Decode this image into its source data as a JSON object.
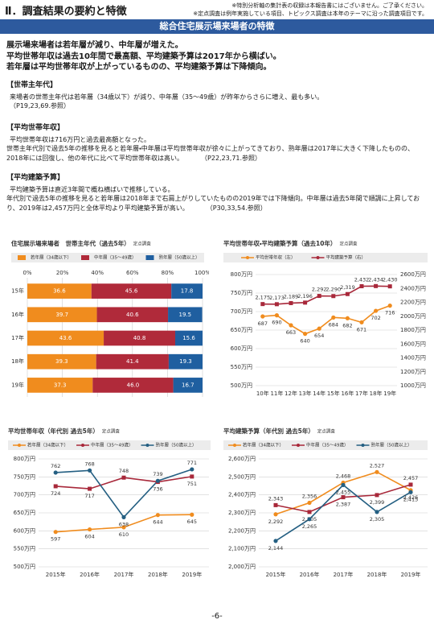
{
  "header": {
    "title": "Ⅱ．調査結果の要約と特徴",
    "notes": [
      "※特別分析軸の集計表の収録は本報告書にはございません。ご了承ください。",
      "※定点調査は例年実施している項目、トピックス調査は本年のテーマに沿った調査項目です。"
    ]
  },
  "banner": "総合住宅展示場来場者の特徴",
  "summary": [
    "展示場来場者は若年層が減り、中年層が増えた。",
    "平均世帯年収は過去10年間で最高額、平均建築予算は2017年から横ばい。",
    "若年層は平均世帯年収が上がっているものの、平均建築予算は下降傾向。"
  ],
  "sections": [
    {
      "heading": "【世帯主年代】",
      "paragraphs": [
        "来場者の世帯主年代は若年層（34歳以下）が減り、中年層（35～49歳）が昨年からさらに増え、最も多い。"
      ],
      "reference": "（P19,23,69.参照）"
    },
    {
      "heading": "【平均世帯年収】",
      "paragraphs": [
        "平均世帯年収は716万円と過去最高額となった。",
        "世帯主年代別で過去5年の推移を見ると若年層・中年層は平均世帯年収が徐々に上がってきており、熟年層は2017年に大きく下降したものの、2018年には回復し、他の年代に比べて平均世帯年収は高い。"
      ],
      "reference": "（P22,23,71.参照）"
    },
    {
      "heading": "【平均建築予算】",
      "paragraphs": [
        "平均建築予算は直近3年間で概ね横ばいで推移している。",
        "年代別で過去5年の推移を見ると若年層は2018年まで右肩上がりしていたものの2019年では下降傾向。中年層は過去5年間で順調に上昇しており、2019年は2,457万円と全体平均より平均建築予算が高い。"
      ],
      "reference": "（P30,33,54.参照）"
    }
  ],
  "chart_data": [
    {
      "type": "bar",
      "orientation": "horizontal",
      "stacked": true,
      "title": "住宅展示場来場者　世帯主年代（過去5年）",
      "note": "定点調査",
      "categories": [
        "15年",
        "16年",
        "17年",
        "18年",
        "19年"
      ],
      "series": [
        {
          "name": "若年層（34歳以下）",
          "color": "#f08c1e",
          "values": [
            36.6,
            39.7,
            43.6,
            39.3,
            37.3
          ]
        },
        {
          "name": "中年層（35～49歳）",
          "color": "#b02a3a",
          "values": [
            45.6,
            40.6,
            40.8,
            41.4,
            46
          ],
          "value_labels": [
            "45.6",
            "40.6",
            "40.8",
            "41.4",
            "46.0"
          ]
        },
        {
          "name": "熟年層（50歳以上）",
          "color": "#1f5fa0",
          "values": [
            17.8,
            19.5,
            15.6,
            19.3,
            16.7
          ]
        }
      ],
      "xlim": [
        0,
        100
      ],
      "xticks": [
        {
          "value": 0,
          "label": "0%"
        },
        {
          "value": 20,
          "label": "20%"
        },
        {
          "value": 40,
          "label": "40%"
        },
        {
          "value": 60,
          "label": "60%"
        },
        {
          "value": 80,
          "label": "80%"
        },
        {
          "value": 100,
          "label": "100%"
        }
      ],
      "grid": true
    },
    {
      "type": "line",
      "title": "平均世帯年収・平均建築予算（過去10年）",
      "note": "定点調査",
      "categories": [
        "10年",
        "11年",
        "12年",
        "13年",
        "14年",
        "15年",
        "16年",
        "17年",
        "18年",
        "19年"
      ],
      "series": [
        {
          "name": "平均世帯年収（左）",
          "color": "#f08c1e",
          "marker": "circle",
          "values": [
            687,
            690,
            663,
            640,
            654,
            684,
            682,
            671,
            702,
            716
          ]
        },
        {
          "name": "平均建築予算（右）",
          "color": "#a8283a",
          "marker": "square",
          "axis": "y2",
          "values": [
            2175,
            2173,
            2189,
            2196,
            2292,
            2290,
            2319,
            2432,
            2434,
            2430
          ],
          "value_labels": [
            "2,175",
            "2,173",
            "2,189",
            "2,196",
            "2,292",
            "2,290",
            "2,319",
            "2,432",
            "2,434",
            "2,430"
          ]
        }
      ],
      "ylim": [
        500,
        800
      ],
      "yticks": [
        {
          "value": 500,
          "label": "500万円"
        },
        {
          "value": 550,
          "label": "550万円"
        },
        {
          "value": 600,
          "label": "600万円"
        },
        {
          "value": 650,
          "label": "650万円"
        },
        {
          "value": 700,
          "label": "700万円"
        },
        {
          "value": 750,
          "label": "750万円"
        },
        {
          "value": 800,
          "label": "800万円"
        }
      ],
      "y2lim": [
        1000,
        2600
      ],
      "y2ticks": [
        {
          "value": 1000,
          "label": "1000万円"
        },
        {
          "value": 1200,
          "label": "1200万円"
        },
        {
          "value": 1400,
          "label": "1400万円"
        },
        {
          "value": 1600,
          "label": "1600万円"
        },
        {
          "value": 1800,
          "label": "1800万円"
        },
        {
          "value": 2000,
          "label": "2000万円"
        },
        {
          "value": 2200,
          "label": "2200万円"
        },
        {
          "value": 2400,
          "label": "2400万円"
        },
        {
          "value": 2600,
          "label": "2600万円"
        }
      ],
      "grid": true
    },
    {
      "type": "line",
      "title": "平均世帯年収（年代別 過去5年）",
      "note": "定点調査",
      "categories": [
        "2015年",
        "2016年",
        "2017年",
        "2018年",
        "2019年"
      ],
      "series": [
        {
          "name": "若年層（34歳以下）",
          "color": "#f08c1e",
          "marker": "circle",
          "values": [
            597,
            604,
            610,
            644,
            645
          ]
        },
        {
          "name": "中年層（35～49歳）",
          "color": "#a8283a",
          "marker": "square",
          "values": [
            724,
            717,
            748,
            736,
            751
          ]
        },
        {
          "name": "熟年層（50歳以上）",
          "color": "#245f82",
          "marker": "circle",
          "values": [
            762,
            768,
            638,
            739,
            771
          ]
        }
      ],
      "ylim": [
        500,
        800
      ],
      "yticks": [
        {
          "value": 500,
          "label": "500万円"
        },
        {
          "value": 550,
          "label": "550万円"
        },
        {
          "value": 600,
          "label": "600万円"
        },
        {
          "value": 650,
          "label": "650万円"
        },
        {
          "value": 700,
          "label": "700万円"
        },
        {
          "value": 750,
          "label": "750万円"
        },
        {
          "value": 800,
          "label": "800万円"
        }
      ],
      "grid": true
    },
    {
      "type": "line",
      "title": "平均建築予算（年代別 過去5年）",
      "note": "定点調査",
      "categories": [
        "2015年",
        "2016年",
        "2017年",
        "2018年",
        "2019年"
      ],
      "series": [
        {
          "name": "若年層（34歳以下）",
          "color": "#f08c1e",
          "marker": "circle",
          "values": [
            2292,
            2356,
            2468,
            2527,
            2426
          ],
          "value_labels": [
            "2,292",
            "2,356",
            "2,468",
            "2,527",
            "2,426"
          ]
        },
        {
          "name": "中年層（35～49歳）",
          "color": "#a8283a",
          "marker": "square",
          "values": [
            2343,
            2305,
            2387,
            2399,
            2457
          ],
          "value_labels": [
            "2,343",
            "2,305",
            "2,387",
            "2,399",
            "2,457"
          ]
        },
        {
          "name": "熟年層（50歳以上）",
          "color": "#245f82",
          "marker": "circle",
          "values": [
            2144,
            2265,
            2455,
            2305,
            2415
          ],
          "value_labels": [
            "2,144",
            "2,265",
            "2,455",
            "2,305",
            "2,415"
          ]
        }
      ],
      "ylim": [
        2000,
        2600
      ],
      "yticks": [
        {
          "value": 2000,
          "label": "2,000万円"
        },
        {
          "value": 2100,
          "label": "2,100万円"
        },
        {
          "value": 2200,
          "label": "2,200万円"
        },
        {
          "value": 2300,
          "label": "2,300万円"
        },
        {
          "value": 2400,
          "label": "2,400万円"
        },
        {
          "value": 2500,
          "label": "2,500万円"
        },
        {
          "value": 2600,
          "label": "2,600万円"
        }
      ],
      "grid": true
    }
  ],
  "footer": {
    "page": "-6-"
  }
}
